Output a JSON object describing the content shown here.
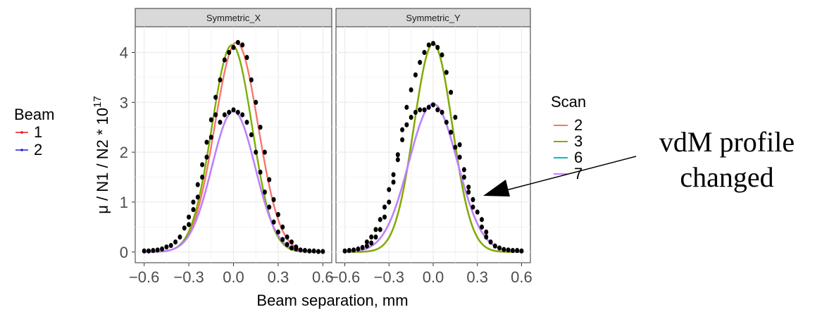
{
  "chart_data": {
    "type": "scatter",
    "xlabel": "Beam separation, mm",
    "ylabel_parts": {
      "main": "μ / N1 / N2 * 10",
      "exp": "17"
    },
    "xlim": [
      -0.6,
      0.6
    ],
    "ylim": [
      0,
      4.3
    ],
    "x_ticks": [
      -0.6,
      -0.3,
      0.0,
      0.3,
      0.6
    ],
    "x_tick_labels": [
      "−0.6",
      "−0.3",
      "0.0",
      "0.3",
      "0.6"
    ],
    "y_ticks": [
      0,
      1,
      2,
      3,
      4
    ],
    "y_tick_labels": [
      "0",
      "1",
      "2",
      "3",
      "4"
    ],
    "grid": true,
    "panels": [
      {
        "title": "Symmetric_X",
        "curves": [
          {
            "scan": "2",
            "color": "#F8766D",
            "amplitude": 4.2,
            "mean": 0.02,
            "sigma": 0.145
          },
          {
            "scan": "3",
            "color": "#7CAE00",
            "amplitude": 4.15,
            "mean": -0.01,
            "sigma": 0.135
          },
          {
            "scan": "6",
            "color": "#00BFC4",
            "amplitude": 2.82,
            "mean": 0.0,
            "sigma": 0.145
          },
          {
            "scan": "7",
            "color": "#C77CFF",
            "amplitude": 2.82,
            "mean": 0.0,
            "sigma": 0.145
          }
        ],
        "points": [
          [
            -0.6,
            0.02
          ],
          [
            -0.57,
            0.02
          ],
          [
            -0.54,
            0.03
          ],
          [
            -0.51,
            0.04
          ],
          [
            -0.48,
            0.06
          ],
          [
            -0.45,
            0.1
          ],
          [
            -0.42,
            0.13
          ],
          [
            -0.39,
            0.2
          ],
          [
            -0.36,
            0.3
          ],
          [
            -0.33,
            0.48
          ],
          [
            -0.3,
            0.55
          ],
          [
            -0.3,
            0.7
          ],
          [
            -0.27,
            0.85
          ],
          [
            -0.27,
            1.0
          ],
          [
            -0.24,
            1.1
          ],
          [
            -0.24,
            1.35
          ],
          [
            -0.21,
            1.5
          ],
          [
            -0.21,
            1.75
          ],
          [
            -0.18,
            1.9
          ],
          [
            -0.18,
            2.2
          ],
          [
            -0.15,
            2.3
          ],
          [
            -0.15,
            2.65
          ],
          [
            -0.12,
            2.75
          ],
          [
            -0.12,
            3.1
          ],
          [
            -0.09,
            2.6
          ],
          [
            -0.09,
            3.45
          ],
          [
            -0.06,
            2.75
          ],
          [
            -0.06,
            3.85
          ],
          [
            -0.03,
            2.8
          ],
          [
            -0.03,
            4.0
          ],
          [
            0.0,
            2.85
          ],
          [
            0.0,
            4.1
          ],
          [
            0.03,
            2.8
          ],
          [
            0.03,
            4.2
          ],
          [
            0.06,
            2.75
          ],
          [
            0.06,
            4.15
          ],
          [
            0.09,
            2.6
          ],
          [
            0.09,
            3.9
          ],
          [
            0.12,
            2.35
          ],
          [
            0.12,
            3.45
          ],
          [
            0.15,
            2.0
          ],
          [
            0.15,
            3.0
          ],
          [
            0.18,
            1.6
          ],
          [
            0.18,
            2.5
          ],
          [
            0.21,
            1.2
          ],
          [
            0.21,
            2.0
          ],
          [
            0.24,
            0.9
          ],
          [
            0.24,
            1.45
          ],
          [
            0.27,
            0.6
          ],
          [
            0.27,
            1.05
          ],
          [
            0.3,
            0.4
          ],
          [
            0.3,
            0.75
          ],
          [
            0.33,
            0.25
          ],
          [
            0.33,
            0.5
          ],
          [
            0.36,
            0.15
          ],
          [
            0.36,
            0.3
          ],
          [
            0.39,
            0.08
          ],
          [
            0.39,
            0.2
          ],
          [
            0.42,
            0.06
          ],
          [
            0.42,
            0.1
          ],
          [
            0.45,
            0.04
          ],
          [
            0.48,
            0.03
          ],
          [
            0.51,
            0.02
          ],
          [
            0.54,
            0.02
          ],
          [
            0.57,
            0.01
          ],
          [
            0.6,
            0.01
          ]
        ]
      },
      {
        "title": "Symmetric_Y",
        "curves": [
          {
            "scan": "2",
            "color": "#F8766D",
            "amplitude": 4.18,
            "mean": 0.0,
            "sigma": 0.13
          },
          {
            "scan": "3",
            "color": "#7CAE00",
            "amplitude": 4.18,
            "mean": 0.0,
            "sigma": 0.13
          },
          {
            "scan": "6",
            "color": "#00BFC4",
            "amplitude": 2.97,
            "mean": 0.0,
            "sigma": 0.165
          },
          {
            "scan": "7",
            "color": "#C77CFF",
            "amplitude": 2.97,
            "mean": 0.0,
            "sigma": 0.165
          }
        ],
        "points": [
          [
            -0.6,
            0.02
          ],
          [
            -0.57,
            0.03
          ],
          [
            -0.54,
            0.04
          ],
          [
            -0.51,
            0.06
          ],
          [
            -0.48,
            0.09
          ],
          [
            -0.45,
            0.12
          ],
          [
            -0.45,
            0.2
          ],
          [
            -0.42,
            0.18
          ],
          [
            -0.42,
            0.3
          ],
          [
            -0.39,
            0.3
          ],
          [
            -0.39,
            0.45
          ],
          [
            -0.36,
            0.45
          ],
          [
            -0.36,
            0.65
          ],
          [
            -0.33,
            0.7
          ],
          [
            -0.33,
            0.9
          ],
          [
            -0.3,
            1.0
          ],
          [
            -0.3,
            1.25
          ],
          [
            -0.27,
            1.4
          ],
          [
            -0.27,
            1.55
          ],
          [
            -0.24,
            1.85
          ],
          [
            -0.24,
            1.95
          ],
          [
            -0.21,
            2.25
          ],
          [
            -0.21,
            2.45
          ],
          [
            -0.18,
            2.55
          ],
          [
            -0.18,
            2.9
          ],
          [
            -0.15,
            2.7
          ],
          [
            -0.15,
            3.25
          ],
          [
            -0.12,
            2.8
          ],
          [
            -0.12,
            3.55
          ],
          [
            -0.09,
            2.85
          ],
          [
            -0.09,
            3.8
          ],
          [
            -0.06,
            2.85
          ],
          [
            -0.06,
            4.0
          ],
          [
            -0.03,
            2.9
          ],
          [
            -0.03,
            4.15
          ],
          [
            0.0,
            2.95
          ],
          [
            0.0,
            4.18
          ],
          [
            0.03,
            2.85
          ],
          [
            0.03,
            4.1
          ],
          [
            0.06,
            2.8
          ],
          [
            0.06,
            3.95
          ],
          [
            0.09,
            2.6
          ],
          [
            0.09,
            3.6
          ],
          [
            0.12,
            2.4
          ],
          [
            0.12,
            3.2
          ],
          [
            0.15,
            2.1
          ],
          [
            0.15,
            2.7
          ],
          [
            0.18,
            1.9
          ],
          [
            0.18,
            2.15
          ],
          [
            0.21,
            1.5
          ],
          [
            0.21,
            1.65
          ],
          [
            0.24,
            1.2
          ],
          [
            0.24,
            1.3
          ],
          [
            0.27,
            0.9
          ],
          [
            0.27,
            1.05
          ],
          [
            0.3,
            0.8
          ],
          [
            0.33,
            0.5
          ],
          [
            0.33,
            0.65
          ],
          [
            0.36,
            0.3
          ],
          [
            0.36,
            0.4
          ],
          [
            0.39,
            0.2
          ],
          [
            0.42,
            0.12
          ],
          [
            0.45,
            0.08
          ],
          [
            0.48,
            0.05
          ],
          [
            0.51,
            0.04
          ],
          [
            0.54,
            0.03
          ],
          [
            0.57,
            0.03
          ],
          [
            0.6,
            0.02
          ]
        ]
      }
    ],
    "legends": {
      "beam": {
        "title": "Beam",
        "items": [
          {
            "label": "1",
            "color": "#e31a1c"
          },
          {
            "label": "2",
            "color": "#1f1fe0"
          }
        ]
      },
      "scan": {
        "title": "Scan",
        "items": [
          {
            "label": "2",
            "color": "#F8766D"
          },
          {
            "label": "3",
            "color": "#7CAE00"
          },
          {
            "label": "6",
            "color": "#00BFC4"
          },
          {
            "label": "7",
            "color": "#C77CFF"
          }
        ]
      }
    },
    "annotation": {
      "lines": [
        "vdM profile",
        "changed"
      ]
    }
  }
}
